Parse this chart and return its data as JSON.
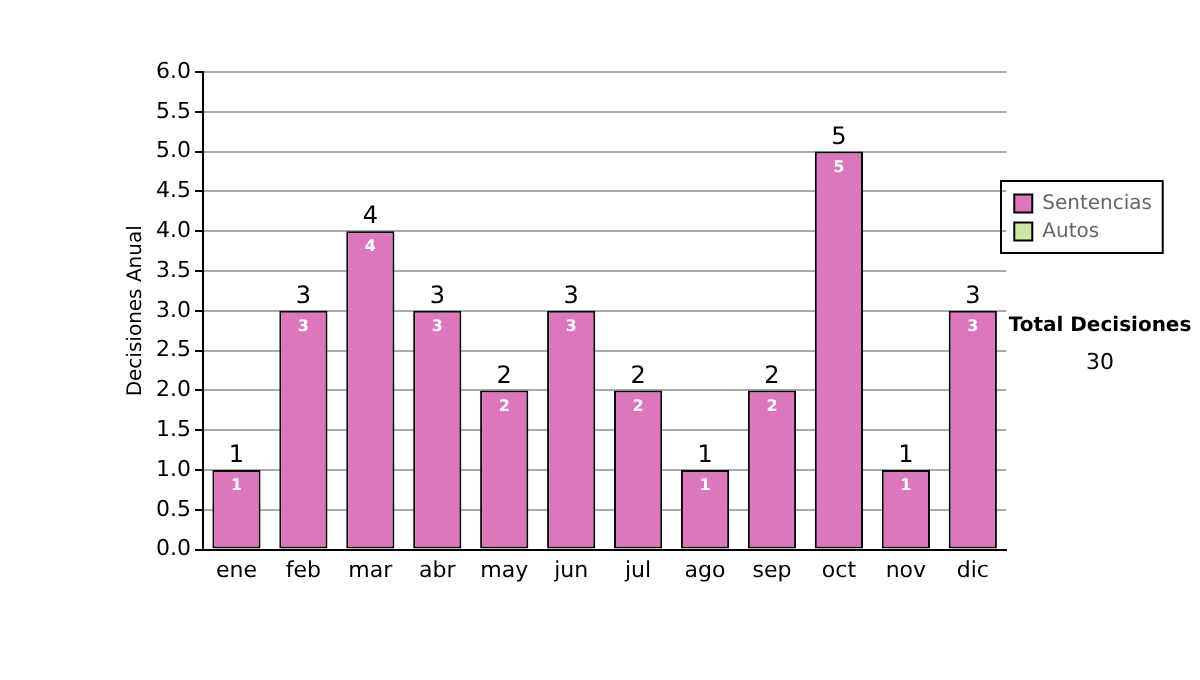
{
  "chart_data": {
    "type": "bar",
    "ylabel": "Decisiones Anual",
    "categories": [
      "ene",
      "feb",
      "mar",
      "abr",
      "may",
      "jun",
      "jul",
      "ago",
      "sep",
      "oct",
      "nov",
      "dic"
    ],
    "series": [
      {
        "name": "Sentencias",
        "color": "#dd77bb",
        "values": [
          1,
          3,
          4,
          3,
          2,
          3,
          2,
          1,
          2,
          5,
          1,
          3
        ],
        "value_labels": [
          "1",
          "3",
          "4",
          "3",
          "2",
          "3",
          "2",
          "1",
          "2",
          "5",
          "1",
          "3"
        ]
      },
      {
        "name": "Autos",
        "color": "#cce8a0",
        "values": [
          0,
          0,
          0,
          0,
          0,
          0,
          0,
          0,
          0,
          0,
          0,
          0
        ]
      }
    ],
    "stacked": true,
    "totals": [
      "1",
      "3",
      "4",
      "3",
      "2",
      "3",
      "2",
      "1",
      "2",
      "5",
      "1",
      "3"
    ],
    "ylim": [
      0,
      6
    ],
    "yticks": [
      {
        "value": 0,
        "label": "0.0"
      },
      {
        "value": 0.5,
        "label": "0.5"
      },
      {
        "value": 1,
        "label": "1.0"
      },
      {
        "value": 1.5,
        "label": "1.5"
      },
      {
        "value": 2,
        "label": "2.0"
      },
      {
        "value": 2.5,
        "label": "2.5"
      },
      {
        "value": 3,
        "label": "3.0"
      },
      {
        "value": 3.5,
        "label": "3.5"
      },
      {
        "value": 4,
        "label": "4.0"
      },
      {
        "value": 4.5,
        "label": "4.5"
      },
      {
        "value": 5,
        "label": "5.0"
      },
      {
        "value": 5.5,
        "label": "5.5"
      },
      {
        "value": 6,
        "label": "6.0"
      }
    ],
    "grid": "y",
    "legend": "right",
    "annotations": [
      "Total Decisiones",
      "30"
    ]
  }
}
